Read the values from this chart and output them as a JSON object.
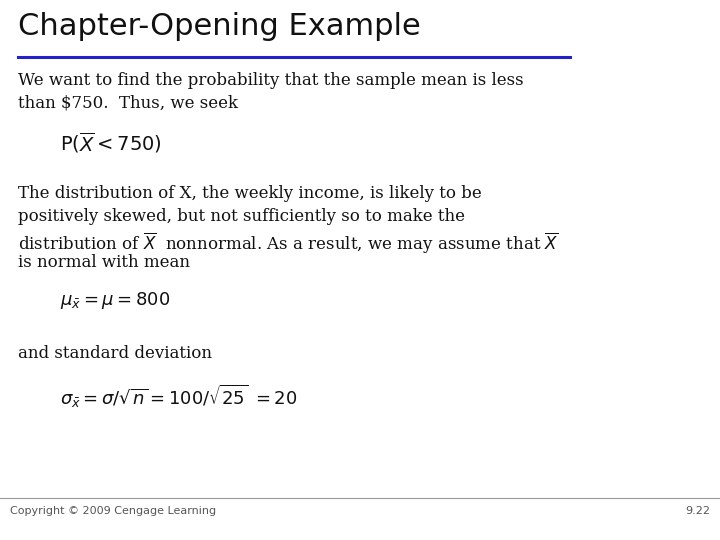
{
  "title": "Chapter-Opening Example",
  "title_fontsize": 22,
  "title_line_color": "#2222cc",
  "body_fontsize": 12,
  "formula_fontsize": 12,
  "body_color": "#111111",
  "copyright_text": "Copyright © 2009 Cengage Learning",
  "page_number": "9.22",
  "background_color": "#ffffff",
  "line1_text": "We want to find the probability that the sample mean is less",
  "line2_text": "than $750.  Thus, we seek",
  "formula1": "$\\mathrm{P}(\\overline{X} < 750)$",
  "body2_line1": "The distribution of X, the weekly income, is likely to be",
  "body2_line2": "positively skewed, but not sufficiently so to make the",
  "body2_line3": "distribution of $\\overline{X}$  nonnormal. As a result, we may assume that $\\overline{X}$",
  "body2_line4": "is normal with mean",
  "formula2": "$\\mu_{\\bar{x}} = \\mu = 800$",
  "and_text": "and standard deviation",
  "formula3": "$\\sigma_{\\bar{x}} = \\sigma/\\sqrt{n} = 100/\\sqrt{25}\\; = 20$"
}
